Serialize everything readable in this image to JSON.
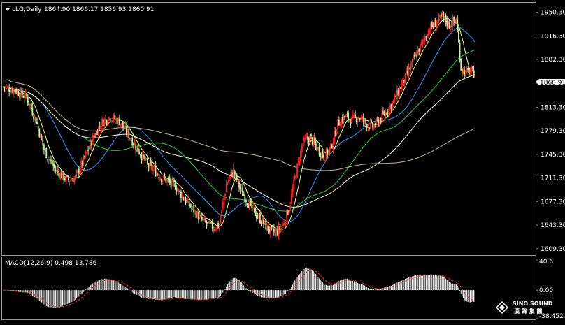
{
  "header": {
    "symbol_label": "LLG,Daily",
    "ohlc_text": "1864.90 1866.17 1856.93 1860.91"
  },
  "price_panel": {
    "current_price": "1860.91",
    "ticks": [
      {
        "value": 1950.3,
        "label": "1950.30"
      },
      {
        "value": 1916.3,
        "label": "1916.30"
      },
      {
        "value": 1882.3,
        "label": "1882.30"
      },
      {
        "value": 1848.3,
        "label": "1848.30"
      },
      {
        "value": 1813.3,
        "label": "1813.30"
      },
      {
        "value": 1779.3,
        "label": "1779.30"
      },
      {
        "value": 1745.3,
        "label": "1745.30"
      },
      {
        "value": 1711.3,
        "label": "1711.30"
      },
      {
        "value": 1677.3,
        "label": "1677.30"
      },
      {
        "value": 1643.3,
        "label": "1643.30"
      },
      {
        "value": 1609.3,
        "label": "1609.30"
      }
    ]
  },
  "macd_panel": {
    "label": "MACD(12,26,9) 0.498 13.786",
    "ticks": [
      {
        "value": 40.6,
        "label": "40.6"
      },
      {
        "value": 0,
        "label": "0.00"
      },
      {
        "value": -38.452,
        "label": "-38.452"
      }
    ]
  },
  "logo": {
    "text_en": "SINO SOUND",
    "text_cn": "漢 聲 集 團"
  },
  "colors": {
    "up": "#ff2020",
    "down": "#c8f0a0",
    "ma_fast": "#ffff66",
    "ma_blue": "#3399ff",
    "ma_green": "#33cc33",
    "ma_white": "#ffffcc",
    "ma_tan": "#c8b88a",
    "macd_hist": "#ffffff",
    "macd_signal": "#ff3030"
  },
  "chart_data": {
    "type": "candlestick",
    "symbol": "LLG",
    "timeframe": "Daily",
    "ylim": [
      1600,
      1962
    ],
    "price_path": [
      [
        0,
        1843
      ],
      [
        10,
        1838
      ],
      [
        20,
        1828
      ],
      [
        28,
        1795
      ],
      [
        35,
        1752
      ],
      [
        45,
        1722
      ],
      [
        55,
        1708
      ],
      [
        62,
        1712
      ],
      [
        70,
        1740
      ],
      [
        78,
        1772
      ],
      [
        85,
        1792
      ],
      [
        92,
        1800
      ],
      [
        100,
        1793
      ],
      [
        108,
        1773
      ],
      [
        116,
        1752
      ],
      [
        124,
        1730
      ],
      [
        130,
        1722
      ],
      [
        136,
        1712
      ],
      [
        142,
        1706
      ],
      [
        148,
        1700
      ],
      [
        154,
        1685
      ],
      [
        160,
        1672
      ],
      [
        166,
        1660
      ],
      [
        172,
        1648
      ],
      [
        180,
        1640
      ],
      [
        186,
        1643
      ],
      [
        192,
        1702
      ],
      [
        198,
        1722
      ],
      [
        204,
        1695
      ],
      [
        210,
        1678
      ],
      [
        216,
        1662
      ],
      [
        222,
        1650
      ],
      [
        228,
        1638
      ],
      [
        234,
        1632
      ],
      [
        240,
        1640
      ],
      [
        246,
        1668
      ],
      [
        252,
        1720
      ],
      [
        258,
        1762
      ],
      [
        264,
        1770
      ],
      [
        270,
        1755
      ],
      [
        276,
        1742
      ],
      [
        282,
        1755
      ],
      [
        288,
        1790
      ],
      [
        294,
        1800
      ],
      [
        300,
        1795
      ],
      [
        306,
        1800
      ],
      [
        312,
        1790
      ],
      [
        318,
        1785
      ],
      [
        324,
        1795
      ],
      [
        330,
        1808
      ],
      [
        336,
        1822
      ],
      [
        342,
        1843
      ],
      [
        348,
        1862
      ],
      [
        354,
        1885
      ],
      [
        360,
        1903
      ],
      [
        366,
        1925
      ],
      [
        372,
        1935
      ],
      [
        378,
        1943
      ],
      [
        384,
        1932
      ],
      [
        390,
        1940
      ],
      [
        394,
        1870
      ],
      [
        398,
        1862
      ],
      [
        402,
        1865
      ],
      [
        406,
        1860.91
      ]
    ],
    "moving_averages": [
      {
        "name": "MA-fast",
        "color": "#ffff66"
      },
      {
        "name": "MA-blue",
        "color": "#3399ff"
      },
      {
        "name": "MA-green",
        "color": "#33cc33"
      },
      {
        "name": "MA-white",
        "color": "#ffffcc"
      },
      {
        "name": "MA-tan",
        "color": "#c8b88a"
      }
    ],
    "macd": {
      "fast": 12,
      "slow": 26,
      "signal": 9,
      "main": 0.498,
      "signal_value": 13.786,
      "ylim": [
        -38.452,
        40.6
      ]
    }
  }
}
